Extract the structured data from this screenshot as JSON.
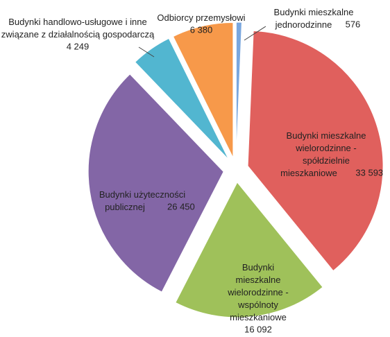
{
  "chart_data": {
    "type": "pie",
    "categories": [
      "Budynki mieszkalne jednorodzinne",
      "Budynki mieszkalne wielorodzinne - spółdzielnie mieszkaniowe",
      "Budynki mieszkalne wielorodzinne - wspólnoty mieszkaniowe",
      "Budynki użyteczności publicznej",
      "Budynki handlowo-usługowe i inne związane z działalnością gospodarczą",
      "Odbiorcy przemysłowi"
    ],
    "values": [
      576,
      33593,
      16092,
      26450,
      4249,
      6380
    ],
    "value_labels": [
      "576",
      "33 593",
      "16 092",
      "26 450",
      "4 249",
      "6 380"
    ],
    "colors": [
      "#7aa7de",
      "#e0605d",
      "#9fc15a",
      "#8366a6",
      "#52b6d0",
      "#f7994a"
    ]
  }
}
